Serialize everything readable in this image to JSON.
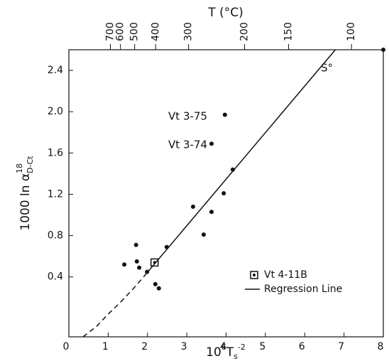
{
  "chart_data": {
    "type": "scatter",
    "title": "T (°C)",
    "xlabel": [
      "10",
      "6",
      "T",
      "s",
      "-2"
    ],
    "ylabel": [
      "1000 ln α",
      "18",
      "D-Ct"
    ],
    "xlim": [
      0,
      8
    ],
    "xticks": [
      0,
      1,
      2,
      3,
      4,
      5,
      6,
      7,
      8
    ],
    "ylim": [
      -0.18,
      2.6
    ],
    "yticks": [
      0.4,
      0.8,
      1.2,
      1.6,
      {
        "value": 2,
        "label": "2.0"
      },
      2.4
    ],
    "x2ticks": [
      {
        "value": 1.056,
        "label": "700"
      },
      {
        "value": 1.312,
        "label": "600"
      },
      {
        "value": 1.674,
        "label": "500"
      },
      {
        "value": 2.208,
        "label": "400"
      },
      {
        "value": 3.046,
        "label": "300"
      },
      {
        "value": 4.47,
        "label": "200"
      },
      {
        "value": 5.59,
        "label": "150"
      },
      {
        "value": 7.19,
        "label": "100"
      }
    ],
    "series": [
      {
        "type": "scatter",
        "color": "#111111",
        "x": [
          1.41,
          1.71,
          1.73,
          1.79,
          1.99,
          2.2,
          2.29,
          2.49,
          3.16,
          3.43,
          3.63,
          3.63,
          3.94,
          3.97,
          4.17,
          8.0
        ],
        "values": [
          0.52,
          0.71,
          0.55,
          0.49,
          0.45,
          0.33,
          0.29,
          0.69,
          1.08,
          0.81,
          1.03,
          1.69,
          1.21,
          1.97,
          1.44,
          2.6
        ]
      },
      {
        "type": "scatter",
        "name": "Vt 4-11B",
        "marker": "square",
        "color": "#111111",
        "x": [
          2.18
        ],
        "values": [
          0.54
        ]
      },
      {
        "type": "line",
        "name": "Regression Line",
        "color": "#111111",
        "x": [
          1.9,
          6.78
        ],
        "values": [
          0.4,
          2.6
        ]
      },
      {
        "type": "line",
        "dashed": true,
        "color": "#111111",
        "x": [
          0.36,
          0.7,
          1.0,
          1.3,
          1.6,
          1.9
        ],
        "values": [
          -0.18,
          -0.08,
          0.04,
          0.15,
          0.27,
          0.4
        ]
      }
    ],
    "annotations": [
      "S°",
      "Vt 3-75",
      "Vt 3-74"
    ]
  }
}
